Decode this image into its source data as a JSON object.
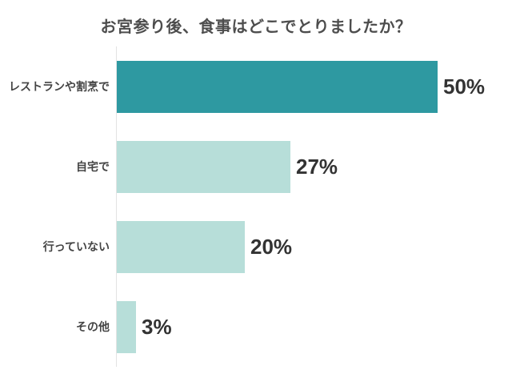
{
  "page": {
    "background": "#ffffff"
  },
  "chart_data": {
    "type": "bar",
    "orientation": "horizontal",
    "title": "お宮参り後、食事はどこでとりましたか？",
    "categories": [
      "レストランや割烹で",
      "自宅で",
      "行っていない",
      "その他"
    ],
    "values": [
      50,
      27,
      20,
      3
    ],
    "value_labels": [
      "50%",
      "27%",
      "20%",
      "3%"
    ],
    "unit": "%",
    "xlim": [
      0,
      62
    ],
    "grid": false,
    "legend": false,
    "highlight_index": 0,
    "bar_colors": [
      "#2E99A1",
      "#B7DED9",
      "#B7DED9",
      "#B7DED9"
    ],
    "colors": {
      "accent": "#2E99A1",
      "muted_bar": "#B7DED9",
      "title_text": "#4D4D4D",
      "category_text": "#444444",
      "value_text": "#333333",
      "axis_line": "#E3E3E3"
    }
  }
}
